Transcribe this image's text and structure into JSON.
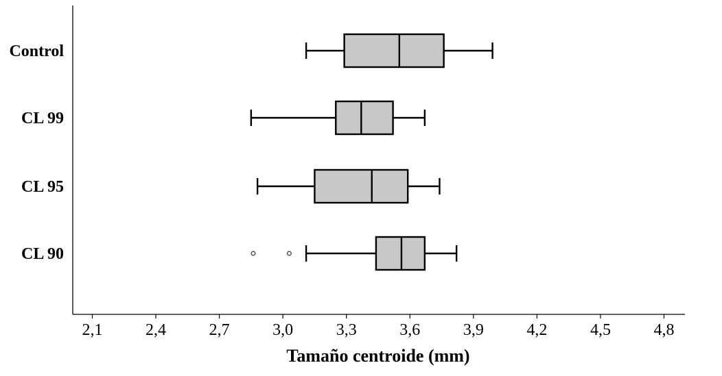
{
  "chart_data": {
    "type": "boxplot",
    "orientation": "horizontal",
    "xlabel": "Tamaño centroide (mm)",
    "ylabel": "",
    "xlim": [
      2.1,
      4.8
    ],
    "x_ticks": [
      2.1,
      2.4,
      2.7,
      3.0,
      3.3,
      3.6,
      3.9,
      4.2,
      4.5,
      4.8
    ],
    "x_tick_labels": [
      "2,1",
      "2,4",
      "2,7",
      "3,0",
      "3,3",
      "3,6",
      "3,9",
      "4,2",
      "4,5",
      "4,8"
    ],
    "grid": false,
    "box_color": "#c8c8c8",
    "line_color": "#000000",
    "groups": [
      {
        "name": "Control",
        "whisker_low": 3.11,
        "q1": 3.29,
        "median": 3.55,
        "q3": 3.76,
        "whisker_high": 3.99,
        "outliers": []
      },
      {
        "name": "CL 99",
        "whisker_low": 2.85,
        "q1": 3.25,
        "median": 3.37,
        "q3": 3.52,
        "whisker_high": 3.67,
        "outliers": []
      },
      {
        "name": "CL 95",
        "whisker_low": 2.88,
        "q1": 3.15,
        "median": 3.42,
        "q3": 3.59,
        "whisker_high": 3.74,
        "outliers": []
      },
      {
        "name": "CL 90",
        "whisker_low": 3.11,
        "q1": 3.44,
        "median": 3.56,
        "q3": 3.67,
        "whisker_high": 3.82,
        "outliers": [
          2.86,
          3.03
        ]
      }
    ]
  }
}
